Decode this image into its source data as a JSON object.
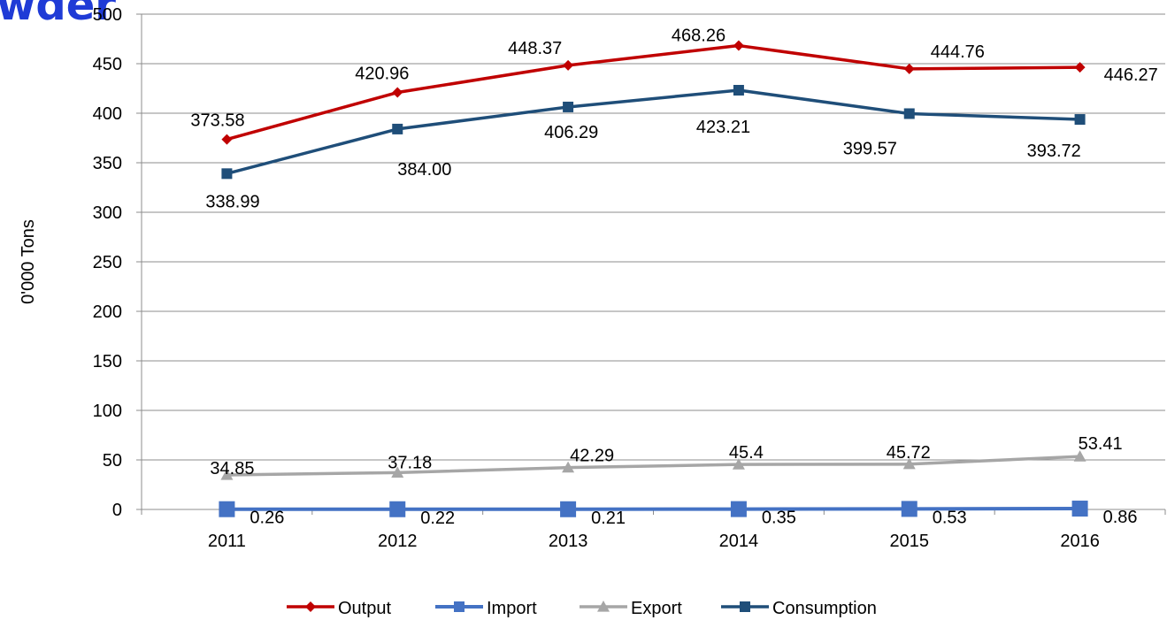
{
  "cut_title": "wder",
  "chart_data": {
    "type": "line",
    "title": "",
    "xlabel": "",
    "ylabel": "0'000 Tons",
    "ylim": [
      0,
      500
    ],
    "yticks": [
      0,
      50,
      100,
      150,
      200,
      250,
      300,
      350,
      400,
      450,
      500
    ],
    "categories": [
      "2011",
      "2012",
      "2013",
      "2014",
      "2015",
      "2016"
    ],
    "grid": true,
    "legend_position": "bottom",
    "series": [
      {
        "name": "Output",
        "color": "#c00000",
        "marker": "diamond",
        "values": [
          373.58,
          420.96,
          448.37,
          468.26,
          444.76,
          446.27
        ],
        "labels": [
          "373.58",
          "420.96",
          "448.37",
          "468.26",
          "444.76",
          "446.27"
        ]
      },
      {
        "name": "Import",
        "color": "#4472c4",
        "marker": "square-large",
        "values": [
          0.26,
          0.22,
          0.21,
          0.35,
          0.53,
          0.86
        ],
        "labels": [
          "0.26",
          "0.22",
          "0.21",
          "0.35",
          "0.53",
          "0.86"
        ]
      },
      {
        "name": "Export",
        "color": "#a6a6a6",
        "marker": "triangle",
        "values": [
          34.85,
          37.18,
          42.29,
          45.4,
          45.72,
          53.41
        ],
        "labels": [
          "34.85",
          "37.18",
          "42.29",
          "45.4",
          "45.72",
          "53.41"
        ]
      },
      {
        "name": "Consumption",
        "color": "#1f4e79",
        "marker": "square",
        "values": [
          338.99,
          384.0,
          406.29,
          423.21,
          399.57,
          393.72
        ],
        "labels": [
          "338.99",
          "384.00",
          "406.29",
          "423.21",
          "399.57",
          "393.72"
        ]
      }
    ]
  }
}
